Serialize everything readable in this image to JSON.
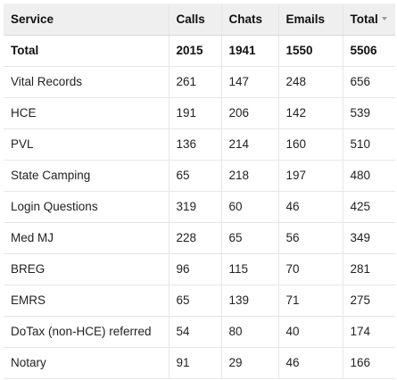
{
  "table": {
    "headers": [
      "Service",
      "Calls",
      "Chats",
      "Emails",
      "Total"
    ],
    "sorted_column": "Total",
    "sort_icon": "sort-descending-icon",
    "total_row": [
      "Total",
      "2015",
      "1941",
      "1550",
      "5506"
    ],
    "rows": [
      [
        "Vital Records",
        "261",
        "147",
        "248",
        "656"
      ],
      [
        "HCE",
        "191",
        "206",
        "142",
        "539"
      ],
      [
        "PVL",
        "136",
        "214",
        "160",
        "510"
      ],
      [
        "State Camping",
        "65",
        "218",
        "197",
        "480"
      ],
      [
        "Login Questions",
        "319",
        "60",
        "46",
        "425"
      ],
      [
        "Med MJ",
        "228",
        "65",
        "56",
        "349"
      ],
      [
        "BREG",
        "96",
        "115",
        "70",
        "281"
      ],
      [
        "EMRS",
        "65",
        "139",
        "71",
        "275"
      ],
      [
        "DoTax (non-HCE) referred",
        "54",
        "80",
        "40",
        "174"
      ],
      [
        "Notary",
        "91",
        "29",
        "46",
        "166"
      ]
    ]
  }
}
